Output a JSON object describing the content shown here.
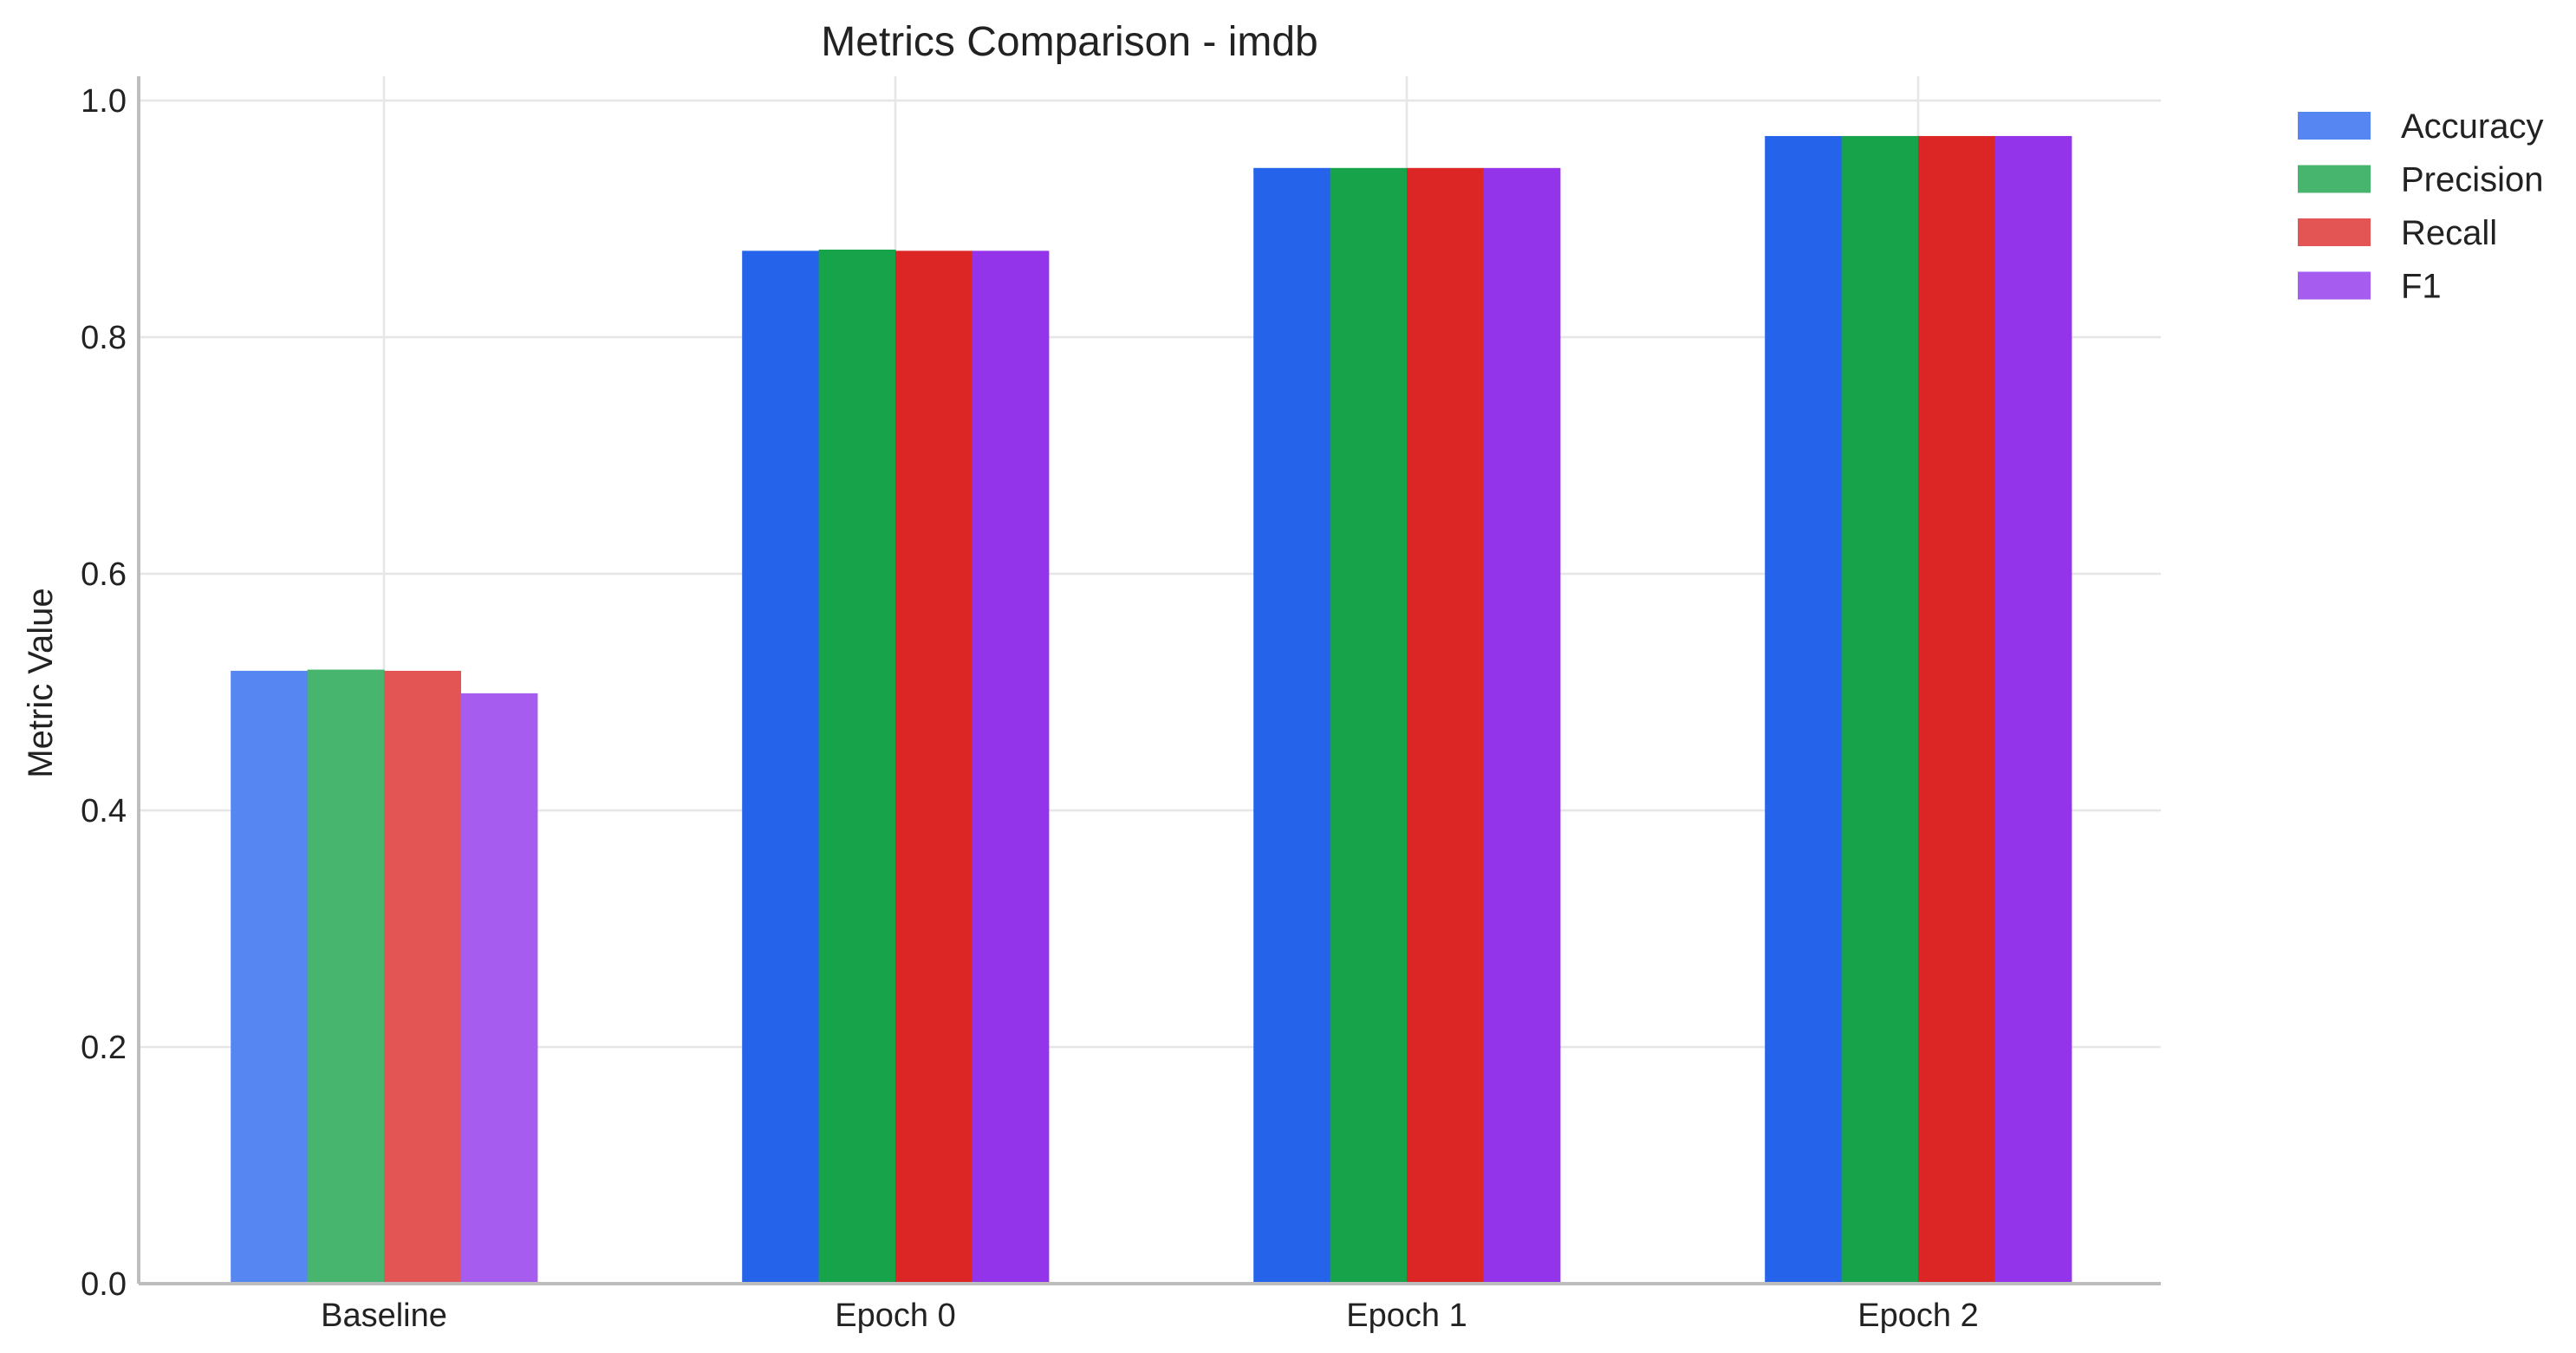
{
  "chart_data": {
    "type": "bar",
    "title": "Metrics Comparison - imdb",
    "xlabel": "",
    "ylabel": "Metric Value",
    "categories": [
      "Baseline",
      "Epoch 0",
      "Epoch 1",
      "Epoch 2"
    ],
    "series": [
      {
        "name": "Accuracy",
        "values": [
          0.518,
          0.873,
          0.943,
          0.97
        ],
        "color": "#2563eb",
        "baseline_color": "#5586f1"
      },
      {
        "name": "Precision",
        "values": [
          0.519,
          0.874,
          0.943,
          0.97
        ],
        "color": "#16a34a",
        "baseline_color": "#48b56e"
      },
      {
        "name": "Recall",
        "values": [
          0.518,
          0.873,
          0.943,
          0.97
        ],
        "color": "#dc2626",
        "baseline_color": "#e35454"
      },
      {
        "name": "F1",
        "values": [
          0.499,
          0.873,
          0.943,
          0.97
        ],
        "color": "#9333ea",
        "baseline_color": "#a65cee"
      }
    ],
    "ylim": [
      0,
      1.0
    ],
    "yticks": [
      0.0,
      0.2,
      0.4,
      0.6,
      0.8,
      1.0
    ],
    "ytick_labels": [
      "0.0",
      "0.2",
      "0.4",
      "0.6",
      "0.8",
      "1.0"
    ],
    "grid": true,
    "legend_position": "outside-top-right"
  }
}
